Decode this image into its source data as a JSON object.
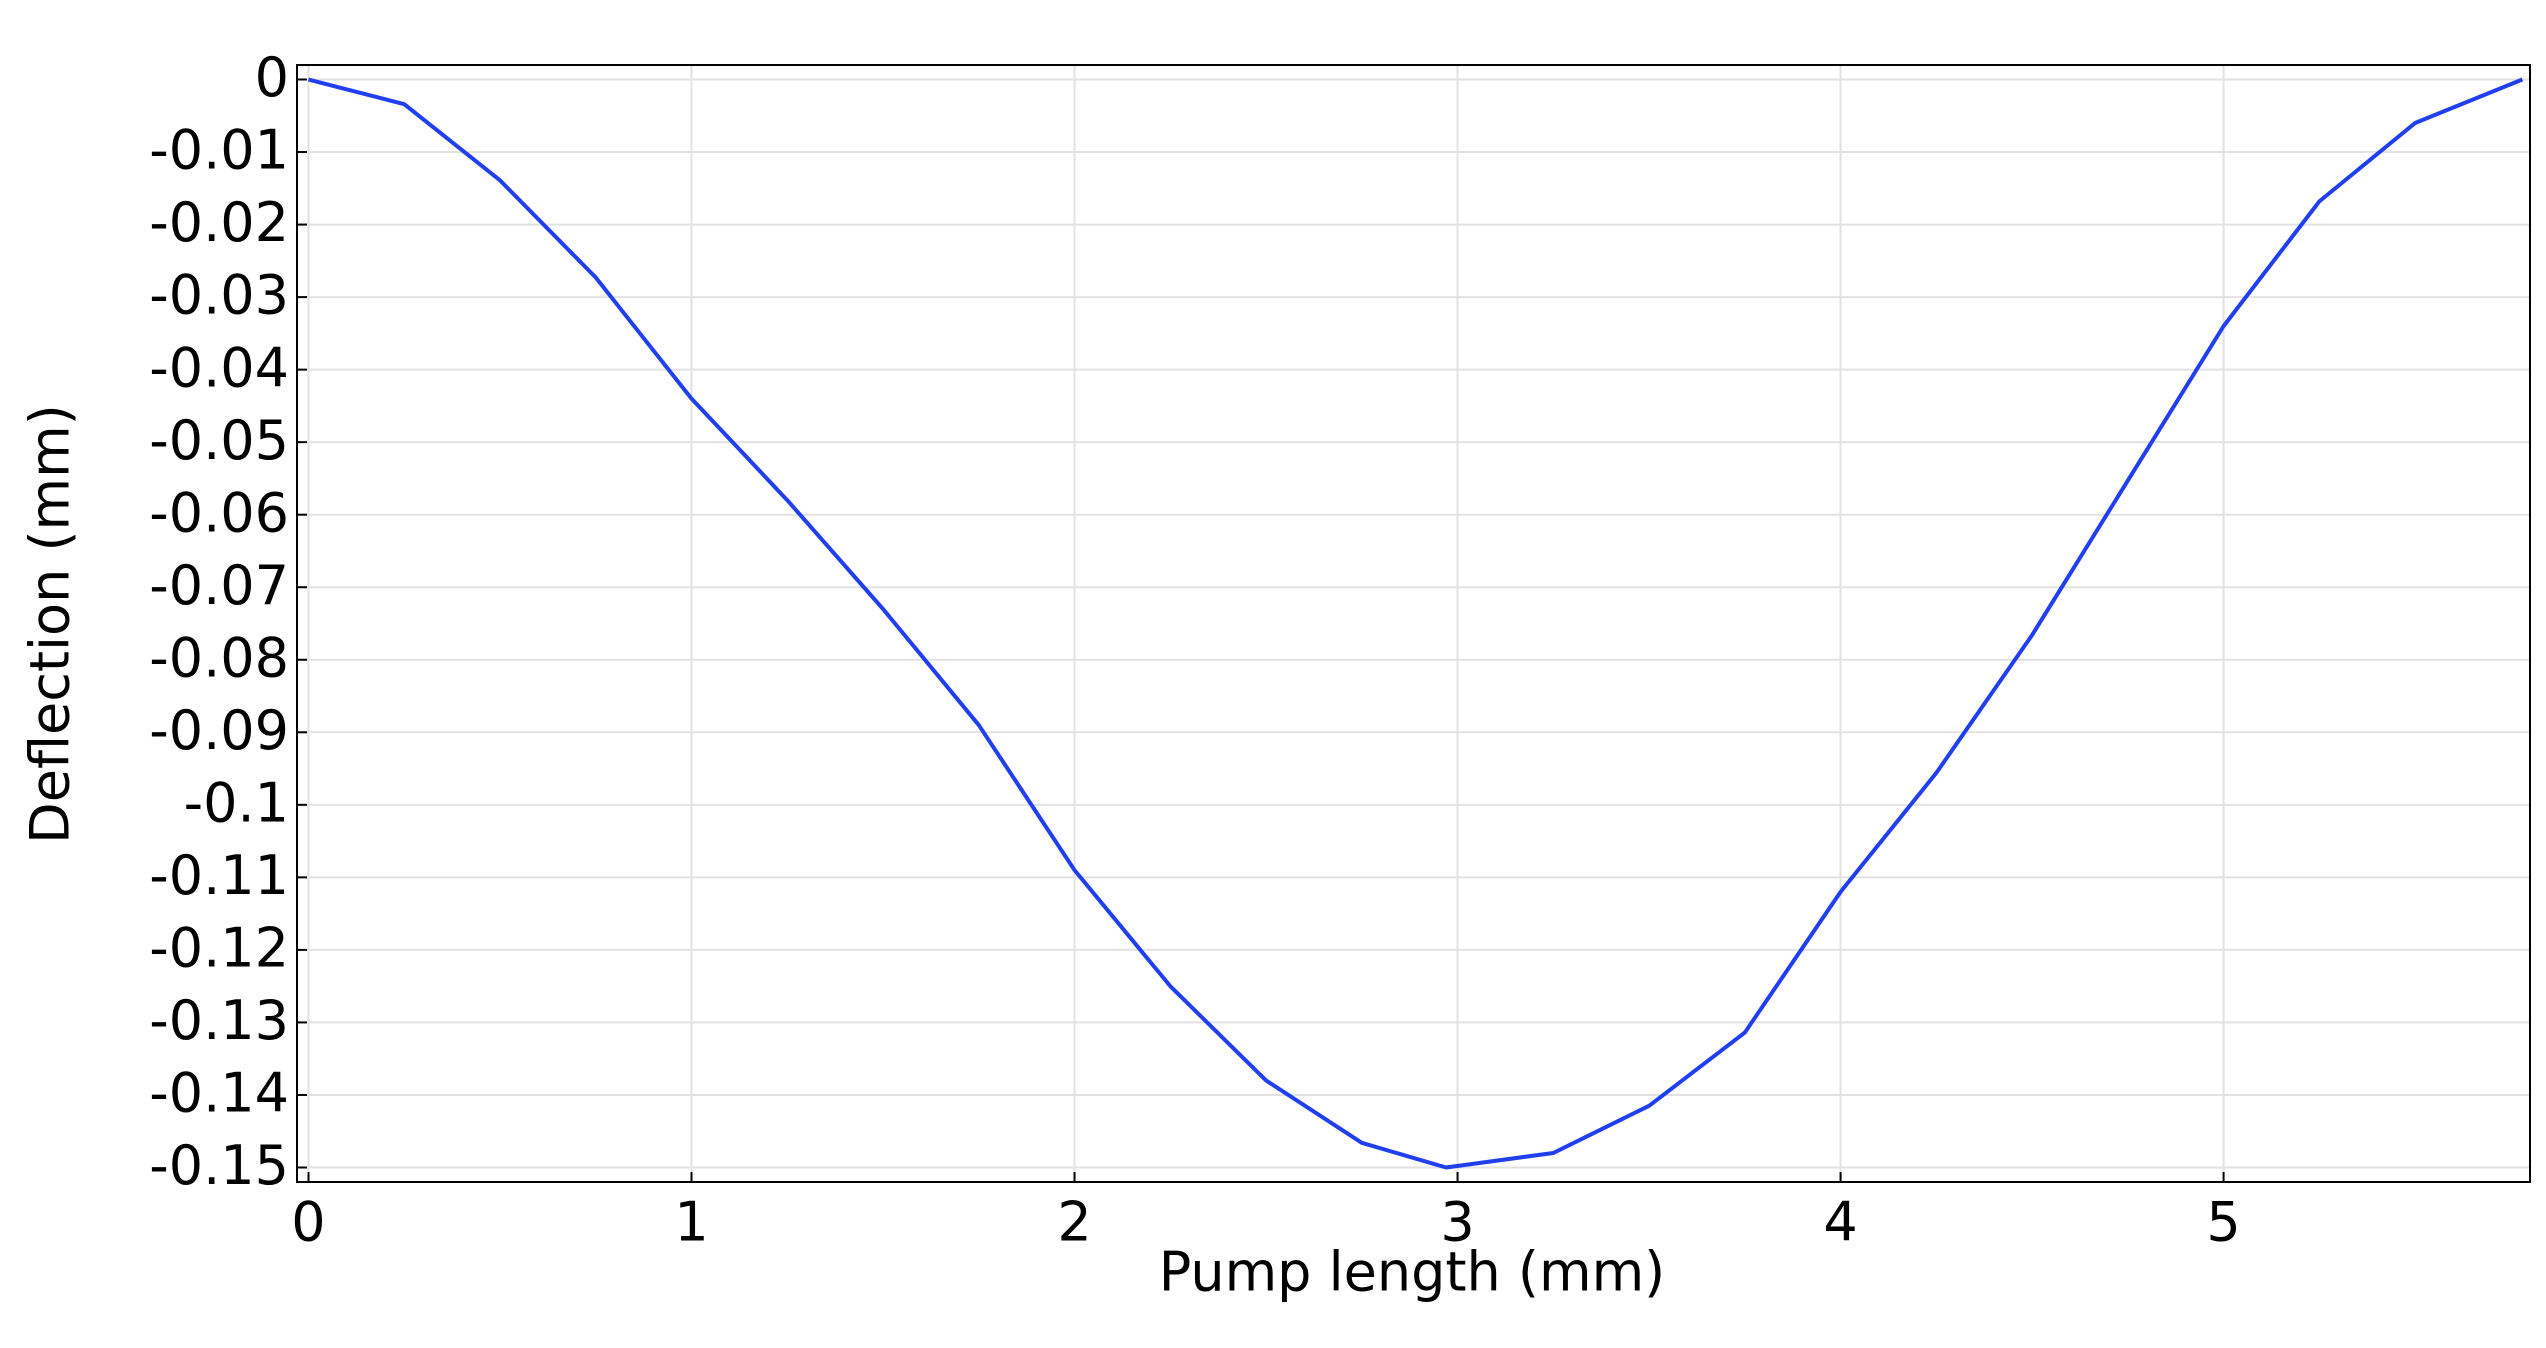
{
  "chart_data": {
    "type": "line",
    "x_label": "Pump length (mm)",
    "y_label": "Deflection (mm)",
    "x": [
      0,
      0.25,
      0.5,
      0.75,
      1.0,
      1.25,
      1.5,
      1.75,
      2.0,
      2.25,
      2.5,
      2.75,
      2.97,
      3.25,
      3.5,
      3.75,
      4.0,
      4.25,
      4.5,
      4.75,
      5.0,
      5.25,
      5.5,
      5.78
    ],
    "series": [
      {
        "name": "Deflection",
        "color": "#1f3ff0",
        "values": [
          0,
          -0.0034,
          -0.0139,
          -0.0273,
          -0.044,
          -0.058,
          -0.073,
          -0.089,
          -0.109,
          -0.125,
          -0.138,
          -0.1466,
          -0.15,
          -0.148,
          -0.1415,
          -0.1314,
          -0.112,
          -0.0956,
          -0.0766,
          -0.0553,
          -0.034,
          -0.0168,
          -0.006,
          0
        ]
      }
    ],
    "xlim": [
      -0.03,
      5.8
    ],
    "ylim": [
      -0.152,
      0.002
    ],
    "xticks": [
      0,
      1,
      2,
      3,
      4,
      5
    ],
    "yticks": [
      0,
      -0.01,
      -0.02,
      -0.03,
      -0.04,
      -0.05,
      -0.06,
      -0.07,
      -0.08,
      -0.09,
      -0.1,
      -0.11,
      -0.12,
      -0.13,
      -0.14,
      -0.15
    ],
    "grid": true
  }
}
